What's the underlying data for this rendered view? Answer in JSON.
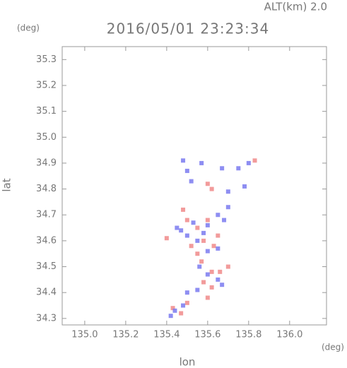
{
  "chart_data": {
    "type": "scatter",
    "title": "2016/05/01 23:23:34",
    "annotation": "ALT(km) 2.0",
    "x_label": "lon",
    "y_label": "lat",
    "x_unit": "(deg)",
    "y_unit": "(deg)",
    "xlim": [
      134.89,
      136.18
    ],
    "ylim": [
      34.275,
      35.35
    ],
    "xticks": [
      {
        "value": 135,
        "label": "135.0"
      },
      135.2,
      135.4,
      135.6,
      135.8,
      {
        "value": 136,
        "label": "136.0"
      }
    ],
    "yticks": [
      34.3,
      34.4,
      34.5,
      34.6,
      34.7,
      34.8,
      34.9,
      {
        "value": 35,
        "label": "35.0"
      },
      35.1,
      35.2,
      35.3
    ],
    "grid": false,
    "series": [
      {
        "color": "#f08a8a",
        "x": [
          135.83,
          135.6,
          135.62,
          135.55,
          135.6,
          135.58,
          135.52,
          135.63,
          135.55,
          135.57,
          135.62,
          135.66,
          135.58,
          135.62,
          135.6,
          135.5,
          135.43,
          135.47,
          135.4,
          135.65,
          135.5,
          135.48,
          135.7
        ],
        "values": [
          34.91,
          34.82,
          34.8,
          34.65,
          34.68,
          34.6,
          34.58,
          34.58,
          34.55,
          34.52,
          34.48,
          34.48,
          34.44,
          34.42,
          34.38,
          34.36,
          34.34,
          34.32,
          34.61,
          34.62,
          34.68,
          34.72,
          34.5
        ]
      },
      {
        "color": "#7a7af0",
        "x": [
          135.48,
          135.57,
          135.67,
          135.75,
          135.8,
          135.78,
          135.7,
          135.52,
          135.5,
          135.45,
          135.47,
          135.53,
          135.6,
          135.65,
          135.68,
          135.55,
          135.6,
          135.65,
          135.56,
          135.65,
          135.6,
          135.67,
          135.55,
          135.5,
          135.44,
          135.48,
          135.42,
          135.7,
          135.5,
          135.58
        ],
        "values": [
          34.91,
          34.9,
          34.88,
          34.88,
          34.9,
          34.81,
          34.79,
          34.83,
          34.87,
          34.65,
          34.64,
          34.67,
          34.66,
          34.7,
          34.68,
          34.6,
          34.56,
          34.57,
          34.5,
          34.45,
          34.47,
          34.43,
          34.41,
          34.4,
          34.33,
          34.35,
          34.31,
          34.73,
          34.62,
          34.63
        ]
      }
    ]
  }
}
